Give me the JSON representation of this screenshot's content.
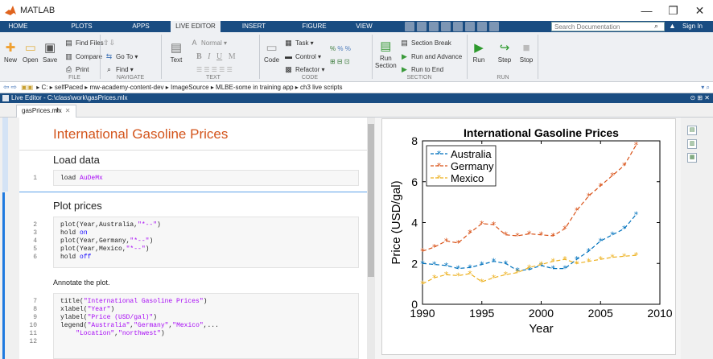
{
  "app": {
    "title": "MATLAB"
  },
  "window_controls": {
    "minimize": "—",
    "restore": "❐",
    "close": "✕"
  },
  "tabs": [
    "HOME",
    "PLOTS",
    "APPS",
    "LIVE EDITOR",
    "INSERT",
    "FIGURE",
    "VIEW"
  ],
  "search": {
    "placeholder": "Search Documentation"
  },
  "sign_in": "Sign In",
  "toolstrip": {
    "file": {
      "new": "New",
      "open": "Open",
      "save": "Save",
      "find_files": "Find Files",
      "compare": "Compare",
      "print": "Print"
    },
    "navigate": {
      "go_to": "Go To",
      "find": "Find"
    },
    "text": {
      "normal": "Normal",
      "text": "Text",
      "bold": "B",
      "italic": "I",
      "underline": "U",
      "mono": "M"
    },
    "code": {
      "code": "Code",
      "task": "Task",
      "control": "Control",
      "refactor": "Refactor"
    },
    "section": {
      "section_break": "Section Break",
      "run_and_advance": "Run and Advance",
      "run_to_end": "Run to End",
      "run_section": "Run",
      "run_section_2": "Section"
    },
    "run": {
      "run": "Run",
      "step": "Step",
      "stop": "Stop"
    },
    "groups": [
      "FILE",
      "NAVIGATE",
      "TEXT",
      "CODE",
      "SECTION",
      "RUN"
    ]
  },
  "address": {
    "path": "▸ C: ▸ selfPaced ▸ mw-academy-content-dev ▸ ImageSource ▸ MLBE-some in training app ▸ ch3 live scripts"
  },
  "editor_title": "Live Editor - C:\\class\\work\\gasPrices.mlx",
  "file_tab": "gasPrices.mlx",
  "file_tab_close": "✕",
  "file_tab_add": "+",
  "doc": {
    "title": "International Gasoline Prices",
    "h_load": "Load data",
    "h_plot": "Plot prices",
    "annotate_text": "Annotate the plot.",
    "line_numbers": [
      "1",
      "2",
      "3",
      "4",
      "5",
      "6",
      "7",
      "8",
      "9",
      "10",
      "11",
      "12"
    ],
    "code": {
      "l1a": "load ",
      "l1b": "AuDeMx",
      "l2a": "plot(Year,Australia,",
      "l2b": "\"*--\"",
      "l2c": ")",
      "l3a": "hold ",
      "l3b": "on",
      "l4a": "plot(Year,Germany,",
      "l4b": "\"*--\"",
      "l4c": ")",
      "l5a": "plot(Year,Mexico,",
      "l5b": "\"*--\"",
      "l5c": ")",
      "l6a": "hold ",
      "l6b": "off",
      "l7a": "title(",
      "l7b": "\"International Gasoline Prices\"",
      "l7c": ")",
      "l8a": "xlabel(",
      "l8b": "\"Year\"",
      "l8c": ")",
      "l9a": "ylabel(",
      "l9b": "\"Price (USD/gal)\"",
      "l9c": ")",
      "l10a": "legend(",
      "l10b": "\"Australia\"",
      "l10c": ",",
      "l10d": "\"Germany\"",
      "l10e": ",",
      "l10f": "\"Mexico\"",
      "l10g": ",...",
      "l11a": "    ",
      "l11b": "\"Location\"",
      "l11c": ",",
      "l11d": "\"northwest\"",
      "l11e": ")"
    }
  },
  "chart_data": {
    "type": "line",
    "title": "International Gasoline Prices",
    "xlabel": "Year",
    "ylabel": "Price (USD/gal)",
    "xlim": [
      1990,
      2010
    ],
    "ylim": [
      0,
      8
    ],
    "xticks": [
      1990,
      1995,
      2000,
      2005,
      2010
    ],
    "yticks": [
      0,
      2,
      4,
      6,
      8
    ],
    "legend_location": "northwest",
    "x": [
      1990,
      1991,
      1992,
      1993,
      1994,
      1995,
      1996,
      1997,
      1998,
      1999,
      2000,
      2001,
      2002,
      2003,
      2004,
      2005,
      2006,
      2007,
      2008
    ],
    "series": [
      {
        "name": "Australia",
        "color": "#0072bd",
        "values": [
          2.0,
          1.95,
          1.9,
          1.75,
          1.8,
          1.95,
          2.1,
          2.0,
          1.65,
          1.7,
          1.9,
          1.75,
          1.75,
          2.2,
          2.6,
          3.1,
          3.4,
          3.7,
          4.4
        ]
      },
      {
        "name": "Germany",
        "color": "#d95319",
        "values": [
          2.6,
          2.8,
          3.1,
          3.0,
          3.5,
          3.95,
          3.9,
          3.4,
          3.35,
          3.45,
          3.4,
          3.35,
          3.7,
          4.6,
          5.3,
          5.8,
          6.3,
          6.8,
          7.8
        ]
      },
      {
        "name": "Mexico",
        "color": "#edb120",
        "values": [
          1.0,
          1.3,
          1.45,
          1.4,
          1.5,
          1.1,
          1.3,
          1.45,
          1.55,
          1.8,
          1.95,
          2.1,
          2.2,
          2.0,
          2.1,
          2.2,
          2.3,
          2.35,
          2.4
        ]
      }
    ]
  }
}
